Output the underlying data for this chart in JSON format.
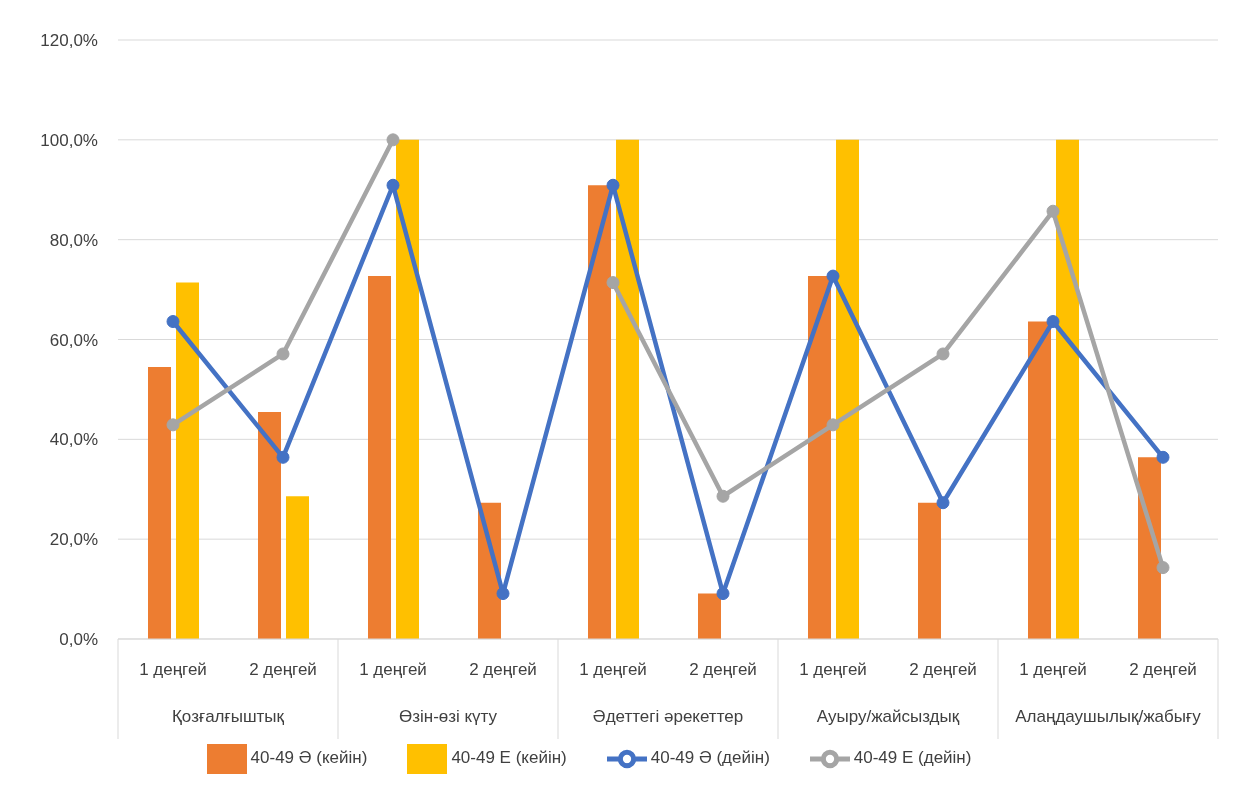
{
  "chart_data": {
    "type": "bar",
    "categories": [
      "1 деңгей",
      "2 деңгей",
      "1 деңгей",
      "2 деңгей",
      "1 деңгей",
      "2 деңгей",
      "1 деңгей",
      "2 деңгей",
      "1 деңгей",
      "2 деңгей"
    ],
    "annotations": [
      "Қозғалғыштық",
      "Өзін-өзі күту",
      "Әдеттегі әрекеттер",
      "Ауыру/жайсыздық",
      "Алаңдаушылық/жабығу"
    ],
    "series": [
      {
        "name": "40-49 Ә (кейін)",
        "color": "#ed7d31",
        "values": [
          54.5,
          45.5,
          72.7,
          27.3,
          90.9,
          9.1,
          72.7,
          27.3,
          63.6,
          36.4
        ]
      },
      {
        "name": "40-49 Е (кейін)",
        "color": "#ffc000",
        "values": [
          71.4,
          28.6,
          100,
          null,
          100,
          null,
          100,
          null,
          100,
          null
        ]
      },
      {
        "name": "40-49 Ә (дейін)",
        "type": "line",
        "color": "#4472c4",
        "values": [
          63.6,
          36.4,
          90.9,
          9.1,
          90.9,
          9.1,
          72.7,
          27.3,
          63.6,
          36.4
        ]
      },
      {
        "name": "40-49 Е (дейін)",
        "type": "line",
        "color": "#a5a5a5",
        "values": [
          42.9,
          57.1,
          100,
          null,
          71.4,
          28.6,
          42.9,
          57.1,
          85.7,
          14.3
        ]
      }
    ],
    "ylim": [
      0,
      120
    ],
    "yticks": [
      {
        "value": 0,
        "label": "0,0%"
      },
      {
        "value": 20,
        "label": "20,0%"
      },
      {
        "value": 40,
        "label": "40,0%"
      },
      {
        "value": 60,
        "label": "60,0%"
      },
      {
        "value": 80,
        "label": "80,0%"
      },
      {
        "value": 100,
        "label": "100,0%"
      },
      {
        "value": 120,
        "label": "120,0%"
      }
    ],
    "grid": "y",
    "legend": "bottom",
    "marker": "circle"
  }
}
